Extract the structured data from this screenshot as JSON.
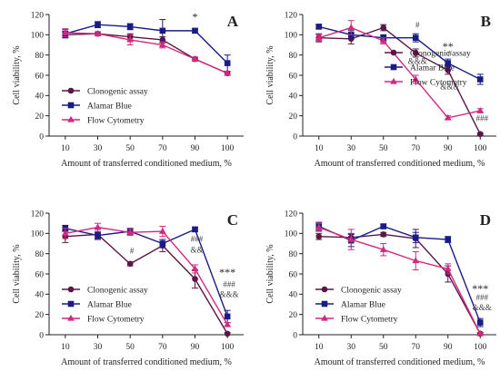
{
  "colors": {
    "clonogenic": "#5b1646",
    "alamar": "#1a1c86",
    "flow": "#d0297e",
    "axis": "#222222"
  },
  "legend_entries": [
    "Clonogenic assay",
    "Alamar Blue",
    "Flow Cytometry"
  ],
  "chart_data": [
    {
      "type": "line",
      "panel": "A",
      "xlabel": "Amount of transferred conditioned medium, %",
      "ylabel": "Cell viability, %",
      "categories": [
        "10",
        "30",
        "50",
        "70",
        "90",
        "100"
      ],
      "ylim": [
        0,
        120
      ],
      "yticks": [
        0,
        20,
        40,
        60,
        80,
        100,
        120
      ],
      "legend_position": "bottom-left",
      "series": [
        {
          "name": "Clonogenic assay",
          "marker": "circle",
          "values": [
            100,
            101,
            98,
            95,
            76,
            62
          ],
          "errors": [
            3,
            2,
            3,
            3,
            2,
            2
          ]
        },
        {
          "name": "Alamar Blue",
          "marker": "square",
          "values": [
            101,
            110,
            108,
            104,
            104,
            72
          ],
          "errors": [
            4,
            3,
            3,
            11,
            2,
            8
          ]
        },
        {
          "name": "Flow Cytometry",
          "marker": "triangle",
          "values": [
            102,
            101,
            95,
            90,
            76,
            62
          ],
          "errors": [
            4,
            2,
            5,
            3,
            2,
            2
          ]
        }
      ],
      "annotations": [
        {
          "text": "*",
          "x": "90",
          "y": 114,
          "size": "big"
        }
      ]
    },
    {
      "type": "line",
      "panel": "B",
      "xlabel": "Amount of transferred conditioned medium, %",
      "ylabel": "Cell viability, %",
      "categories": [
        "10",
        "30",
        "50",
        "70",
        "90",
        "100"
      ],
      "ylim": [
        0,
        120
      ],
      "yticks": [
        0,
        20,
        40,
        60,
        80,
        100,
        120
      ],
      "legend_position": "center-right",
      "series": [
        {
          "name": "Clonogenic assay",
          "marker": "circle",
          "values": [
            97,
            96,
            107,
            82,
            65,
            2
          ],
          "errors": [
            4,
            5,
            3,
            4,
            4,
            1
          ]
        },
        {
          "name": "Alamar Blue",
          "marker": "square",
          "values": [
            108,
            100,
            97,
            97,
            72,
            56
          ],
          "errors": [
            2,
            4,
            3,
            4,
            4,
            5
          ]
        },
        {
          "name": "Flow Cytometry",
          "marker": "triangle",
          "values": [
            97,
            107,
            94,
            56,
            18,
            25
          ],
          "errors": [
            3,
            7,
            3,
            4,
            2,
            2
          ]
        }
      ],
      "annotations": [
        {
          "text": "#",
          "x": "70",
          "y": 107,
          "size": "small"
        },
        {
          "text": "**",
          "x": "90",
          "y": 85,
          "size": "big"
        },
        {
          "text": "#",
          "x": "90",
          "y": 79,
          "size": "small"
        },
        {
          "text": "&&&",
          "x": "70",
          "y": 71,
          "size": "small"
        },
        {
          "text": "&&&",
          "x": "90",
          "y": 46,
          "size": "small"
        },
        {
          "text": "###",
          "x": "100",
          "y": 15,
          "size": "small"
        }
      ]
    },
    {
      "type": "line",
      "panel": "C",
      "xlabel": "Amount of transferred conditioned medium, %",
      "ylabel": "Cell viability, %",
      "categories": [
        "10",
        "30",
        "50",
        "70",
        "90",
        "100"
      ],
      "ylim": [
        0,
        120
      ],
      "yticks": [
        0,
        20,
        40,
        60,
        80,
        100,
        120
      ],
      "legend_position": "bottom-left",
      "series": [
        {
          "name": "Clonogenic assay",
          "marker": "circle",
          "values": [
            97,
            99,
            70,
            88,
            55,
            1
          ],
          "errors": [
            6,
            5,
            2,
            6,
            9,
            1
          ]
        },
        {
          "name": "Alamar Blue",
          "marker": "square",
          "values": [
            105,
            98,
            102,
            90,
            104,
            18
          ],
          "errors": [
            3,
            3,
            3,
            4,
            2,
            6
          ]
        },
        {
          "name": "Flow Cytometry",
          "marker": "triangle",
          "values": [
            100,
            106,
            101,
            102,
            65,
            10
          ],
          "errors": [
            5,
            4,
            3,
            5,
            4,
            2
          ]
        }
      ],
      "annotations": [
        {
          "text": "#",
          "x": "50",
          "y": 80,
          "size": "small"
        },
        {
          "text": "###",
          "x": "90",
          "y": 92,
          "size": "small"
        },
        {
          "text": "&&",
          "x": "90",
          "y": 81,
          "size": "small"
        },
        {
          "text": "***",
          "x": "100",
          "y": 58,
          "size": "big"
        },
        {
          "text": "###",
          "x": "100",
          "y": 47,
          "size": "small"
        },
        {
          "text": "&&&",
          "x": "100",
          "y": 37,
          "size": "small"
        }
      ]
    },
    {
      "type": "line",
      "panel": "D",
      "xlabel": "Amount of transferred conditioned medium, %",
      "ylabel": "Cell viability, %",
      "categories": [
        "10",
        "30",
        "50",
        "70",
        "90",
        "100"
      ],
      "ylim": [
        0,
        120
      ],
      "yticks": [
        0,
        20,
        40,
        60,
        80,
        100,
        120
      ],
      "legend_position": "bottom-left",
      "series": [
        {
          "name": "Clonogenic assay",
          "marker": "circle",
          "values": [
            97,
            96,
            99,
            95,
            60,
            1
          ],
          "errors": [
            3,
            4,
            2,
            9,
            8,
            1
          ]
        },
        {
          "name": "Alamar Blue",
          "marker": "square",
          "values": [
            107,
            93,
            107,
            96,
            94,
            12
          ],
          "errors": [
            4,
            6,
            2,
            5,
            3,
            4
          ]
        },
        {
          "name": "Flow Cytometry",
          "marker": "triangle",
          "values": [
            106,
            94,
            84,
            73,
            65,
            1
          ],
          "errors": [
            4,
            10,
            6,
            9,
            5,
            1
          ]
        }
      ],
      "annotations": [
        {
          "text": "***",
          "x": "100",
          "y": 42,
          "size": "big"
        },
        {
          "text": "###",
          "x": "100",
          "y": 34,
          "size": "small"
        },
        {
          "text": "&&&",
          "x": "100",
          "y": 24,
          "size": "small"
        }
      ]
    }
  ]
}
